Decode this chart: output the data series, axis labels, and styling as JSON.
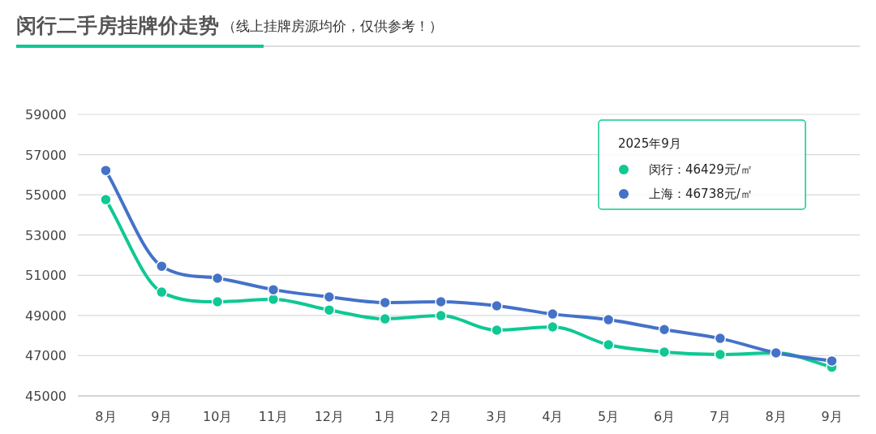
{
  "chart_data": {
    "type": "line",
    "title": "闵行二手房挂牌价走势",
    "subtitle": "（线上挂牌房源均价，仅供参考！）",
    "categories": [
      "8月",
      "9月",
      "10月",
      "11月",
      "12月",
      "1月",
      "2月",
      "3月",
      "4月",
      "5月",
      "6月",
      "7月",
      "8月",
      "9月"
    ],
    "series": [
      {
        "name": "闵行",
        "color": "#0fc894",
        "values": [
          54760,
          50160,
          49680,
          49800,
          49270,
          48830,
          48990,
          48270,
          48430,
          47540,
          47180,
          47060,
          47140,
          46429
        ]
      },
      {
        "name": "上海",
        "color": "#4472c8",
        "values": [
          56210,
          51450,
          50850,
          50280,
          49920,
          49640,
          49680,
          49480,
          49070,
          48790,
          48300,
          47860,
          47140,
          46738
        ]
      }
    ],
    "ylim": [
      45000,
      59000
    ],
    "yticks": [
      45000,
      47000,
      49000,
      51000,
      53000,
      55000,
      57000,
      59000
    ],
    "grid": "y",
    "marker": "circle",
    "line_style": "solid",
    "legend": "top right",
    "legend_title": "2025年9月",
    "annotations": [
      "：46429元/㎡",
      "：46738元/㎡"
    ]
  }
}
